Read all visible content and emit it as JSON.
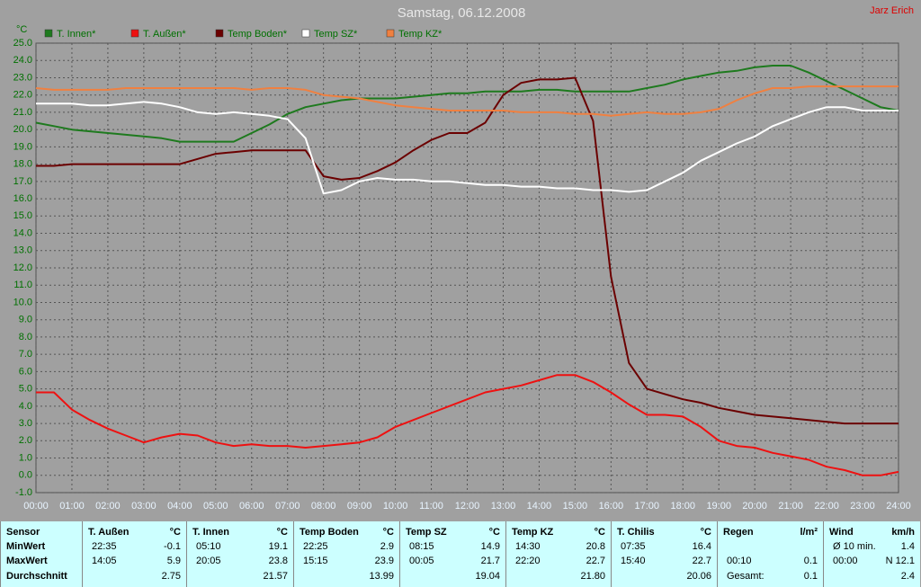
{
  "chart_data": {
    "type": "line",
    "title": "Samstag, 06.12.2008",
    "author": "Jarz Erich",
    "y_unit": "°C",
    "x": [
      0,
      0.5,
      1,
      1.5,
      2,
      2.5,
      3,
      3.5,
      4,
      4.5,
      5,
      5.5,
      6,
      6.5,
      7,
      7.5,
      8,
      8.5,
      9,
      9.5,
      10,
      10.5,
      11,
      11.5,
      12,
      12.5,
      13,
      13.5,
      14,
      14.5,
      15,
      15.5,
      16,
      16.5,
      17,
      17.5,
      18,
      18.5,
      19,
      19.5,
      20,
      20.5,
      21,
      21.5,
      22,
      22.5,
      23,
      23.5,
      24
    ],
    "series": [
      {
        "name": "T. Innen*",
        "color": "#1e7a1e",
        "values": [
          20.4,
          20.2,
          20.0,
          19.9,
          19.8,
          19.7,
          19.6,
          19.5,
          19.3,
          19.3,
          19.3,
          19.3,
          19.8,
          20.3,
          20.9,
          21.3,
          21.5,
          21.7,
          21.8,
          21.8,
          21.8,
          21.9,
          22.0,
          22.1,
          22.1,
          22.2,
          22.2,
          22.2,
          22.3,
          22.3,
          22.2,
          22.2,
          22.2,
          22.2,
          22.4,
          22.6,
          22.9,
          23.1,
          23.3,
          23.4,
          23.6,
          23.7,
          23.7,
          23.3,
          22.8,
          22.3,
          21.8,
          21.3,
          21.1
        ]
      },
      {
        "name": "T. Außen*",
        "color": "#ee1111",
        "values": [
          4.8,
          4.8,
          3.8,
          3.2,
          2.7,
          2.3,
          1.9,
          2.2,
          2.4,
          2.3,
          1.9,
          1.7,
          1.8,
          1.7,
          1.7,
          1.6,
          1.7,
          1.8,
          1.9,
          2.2,
          2.8,
          3.2,
          3.6,
          4.0,
          4.4,
          4.8,
          5.0,
          5.2,
          5.5,
          5.8,
          5.8,
          5.4,
          4.8,
          4.1,
          3.5,
          3.5,
          3.4,
          2.8,
          2.0,
          1.7,
          1.6,
          1.3,
          1.1,
          0.9,
          0.5,
          0.3,
          0.0,
          0.0,
          0.2
        ]
      },
      {
        "name": "Temp Boden*",
        "color": "#6b0000",
        "values": [
          17.9,
          17.9,
          18.0,
          18.0,
          18.0,
          18.0,
          18.0,
          18.0,
          18.0,
          18.3,
          18.6,
          18.7,
          18.8,
          18.8,
          18.8,
          18.8,
          17.3,
          17.1,
          17.2,
          17.6,
          18.1,
          18.8,
          19.4,
          19.8,
          19.8,
          20.4,
          22.0,
          22.7,
          22.9,
          22.9,
          23.0,
          20.5,
          11.5,
          6.5,
          5.0,
          4.7,
          4.4,
          4.2,
          3.9,
          3.7,
          3.5,
          3.4,
          3.3,
          3.2,
          3.1,
          3.0,
          3.0,
          3.0,
          3.0
        ]
      },
      {
        "name": "Temp SZ*",
        "color": "#ffffff",
        "values": [
          21.5,
          21.5,
          21.5,
          21.4,
          21.4,
          21.5,
          21.6,
          21.5,
          21.3,
          21.0,
          20.9,
          21.0,
          20.9,
          20.8,
          20.6,
          19.5,
          16.3,
          16.5,
          17.0,
          17.2,
          17.1,
          17.1,
          17.0,
          17.0,
          16.9,
          16.8,
          16.8,
          16.7,
          16.7,
          16.6,
          16.6,
          16.5,
          16.5,
          16.4,
          16.5,
          17.0,
          17.5,
          18.2,
          18.7,
          19.2,
          19.6,
          20.2,
          20.6,
          21.0,
          21.3,
          21.3,
          21.1,
          21.1,
          21.1
        ]
      },
      {
        "name": "Temp KZ*",
        "color": "#f08040",
        "values": [
          22.4,
          22.3,
          22.3,
          22.3,
          22.3,
          22.4,
          22.4,
          22.4,
          22.4,
          22.4,
          22.4,
          22.4,
          22.3,
          22.4,
          22.4,
          22.3,
          22.0,
          21.9,
          21.8,
          21.6,
          21.4,
          21.3,
          21.2,
          21.1,
          21.1,
          21.1,
          21.1,
          21.0,
          21.0,
          21.0,
          20.9,
          20.9,
          20.8,
          20.9,
          21.0,
          20.9,
          20.9,
          21.0,
          21.2,
          21.7,
          22.1,
          22.4,
          22.4,
          22.5,
          22.5,
          22.5,
          22.5,
          22.5,
          22.5
        ]
      }
    ],
    "xlim": [
      0,
      24
    ],
    "xticks": [
      {
        "value": 0,
        "label": "00:00"
      },
      {
        "value": 1,
        "label": "01:00"
      },
      {
        "value": 2,
        "label": "02:00"
      },
      {
        "value": 3,
        "label": "03:00"
      },
      {
        "value": 4,
        "label": "04:00"
      },
      {
        "value": 5,
        "label": "05:00"
      },
      {
        "value": 6,
        "label": "06:00"
      },
      {
        "value": 7,
        "label": "07:00"
      },
      {
        "value": 8,
        "label": "08:00"
      },
      {
        "value": 9,
        "label": "09:00"
      },
      {
        "value": 10,
        "label": "10:00"
      },
      {
        "value": 11,
        "label": "11:00"
      },
      {
        "value": 12,
        "label": "12:00"
      },
      {
        "value": 13,
        "label": "13:00"
      },
      {
        "value": 14,
        "label": "14:00"
      },
      {
        "value": 15,
        "label": "15:00"
      },
      {
        "value": 16,
        "label": "16:00"
      },
      {
        "value": 17,
        "label": "17:00"
      },
      {
        "value": 18,
        "label": "18:00"
      },
      {
        "value": 19,
        "label": "19:00"
      },
      {
        "value": 20,
        "label": "20:00"
      },
      {
        "value": 21,
        "label": "21:00"
      },
      {
        "value": 22,
        "label": "22:00"
      },
      {
        "value": 23,
        "label": "23:00"
      },
      {
        "value": 24,
        "label": "24:00"
      }
    ],
    "ylim": [
      -1,
      25
    ],
    "yticks": [
      {
        "value": -1,
        "label": "-1.0"
      },
      {
        "value": 0,
        "label": "0.0"
      },
      {
        "value": 1,
        "label": "1.0"
      },
      {
        "value": 2,
        "label": "2.0"
      },
      {
        "value": 3,
        "label": "3.0"
      },
      {
        "value": 4,
        "label": "4.0"
      },
      {
        "value": 5,
        "label": "5.0"
      },
      {
        "value": 6,
        "label": "6.0"
      },
      {
        "value": 7,
        "label": "7.0"
      },
      {
        "value": 8,
        "label": "8.0"
      },
      {
        "value": 9,
        "label": "9.0"
      },
      {
        "value": 10,
        "label": "10.0"
      },
      {
        "value": 11,
        "label": "11.0"
      },
      {
        "value": 12,
        "label": "12.0"
      },
      {
        "value": 13,
        "label": "13.0"
      },
      {
        "value": 14,
        "label": "14.0"
      },
      {
        "value": 15,
        "label": "15.0"
      },
      {
        "value": 16,
        "label": "16.0"
      },
      {
        "value": 17,
        "label": "17.0"
      },
      {
        "value": 18,
        "label": "18.0"
      },
      {
        "value": 19,
        "label": "19.0"
      },
      {
        "value": 20,
        "label": "20.0"
      },
      {
        "value": 21,
        "label": "21.0"
      },
      {
        "value": 22,
        "label": "22.0"
      },
      {
        "value": 23,
        "label": "23.0"
      },
      {
        "value": 24,
        "label": "24.0"
      },
      {
        "value": 25,
        "label": "25.0"
      }
    ],
    "grid": true
  },
  "table": {
    "row_labels": [
      "Sensor",
      "MinWert",
      "MaxWert",
      "Durchschnitt"
    ],
    "columns": [
      {
        "name": "T. Außen",
        "unit": "°C",
        "rows": [
          {
            "left": "22:35",
            "right": "-0.1"
          },
          {
            "left": "14:05",
            "right": "5.9"
          },
          {
            "right": "2.75"
          }
        ]
      },
      {
        "name": "T. Innen",
        "unit": "°C",
        "rows": [
          {
            "left": "05:10",
            "right": "19.1"
          },
          {
            "left": "20:05",
            "right": "23.8"
          },
          {
            "right": "21.57"
          }
        ]
      },
      {
        "name": "Temp Boden",
        "unit": "°C",
        "rows": [
          {
            "left": "22:25",
            "right": "2.9"
          },
          {
            "left": "15:15",
            "right": "23.9"
          },
          {
            "right": "13.99"
          }
        ]
      },
      {
        "name": "Temp SZ",
        "unit": "°C",
        "rows": [
          {
            "left": "08:15",
            "right": "14.9"
          },
          {
            "left": "00:05",
            "right": "21.7"
          },
          {
            "right": "19.04"
          }
        ]
      },
      {
        "name": "Temp KZ",
        "unit": "°C",
        "rows": [
          {
            "left": "14:30",
            "right": "20.8"
          },
          {
            "left": "22:20",
            "right": "22.7"
          },
          {
            "right": "21.80"
          }
        ]
      },
      {
        "name": "T. Chilis",
        "unit": "°C",
        "rows": [
          {
            "left": "07:35",
            "right": "16.4"
          },
          {
            "left": "15:40",
            "right": "22.7"
          },
          {
            "right": "20.06"
          }
        ]
      },
      {
        "name": "Regen",
        "unit": "l/m²",
        "rows": [
          {},
          {
            "left": "00:10",
            "right": "0.1"
          },
          {
            "left": "Gesamt:",
            "right": "0.1"
          }
        ]
      },
      {
        "name": "Wind",
        "unit": "km/h",
        "rows": [
          {
            "left": "Ø 10 min.",
            "right": "1.4"
          },
          {
            "left": "00:00",
            "right": "N 12.1"
          },
          {
            "right": "2.4"
          }
        ]
      }
    ]
  }
}
